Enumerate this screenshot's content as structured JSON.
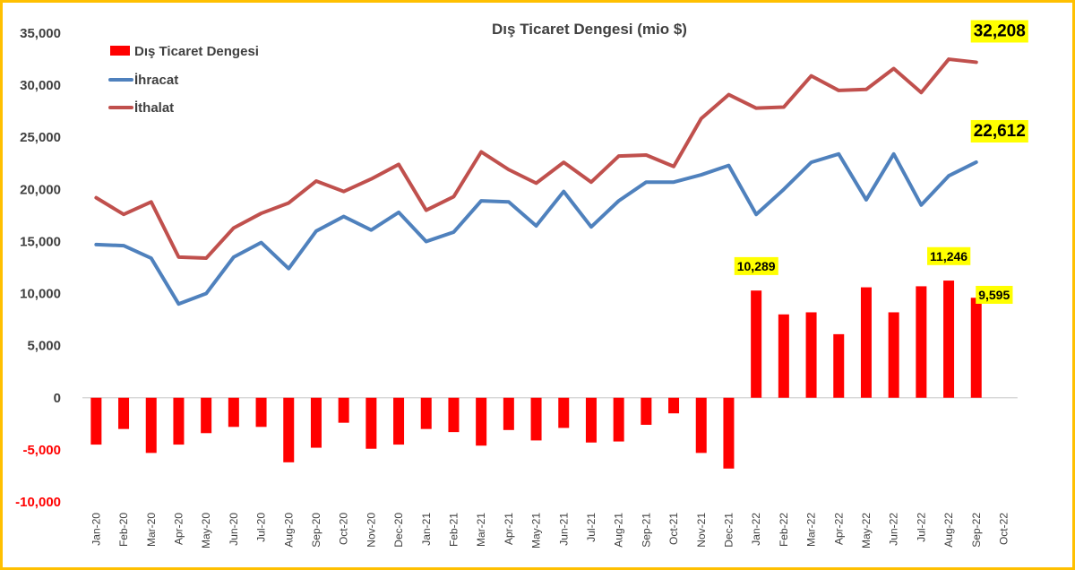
{
  "chart_data": {
    "type": "bar+line",
    "title": "Dış Ticaret Dengesi (mio $)",
    "categories": [
      "Jan-20",
      "Feb-20",
      "Mar-20",
      "Apr-20",
      "May-20",
      "Jun-20",
      "Jul-20",
      "Aug-20",
      "Sep-20",
      "Oct-20",
      "Nov-20",
      "Dec-20",
      "Jan-21",
      "Feb-21",
      "Mar-21",
      "Apr-21",
      "May-21",
      "Jun-21",
      "Jul-21",
      "Aug-21",
      "Sep-21",
      "Oct-21",
      "Nov-21",
      "Dec-21",
      "Jan-22",
      "Feb-22",
      "Mar-22",
      "Apr-22",
      "May-22",
      "Jun-22",
      "Jul-22",
      "Aug-22",
      "Sep-22",
      "Oct-22"
    ],
    "ylim": [
      -10000,
      35000
    ],
    "yticks": [
      -10000,
      -5000,
      0,
      5000,
      10000,
      15000,
      20000,
      25000,
      30000,
      35000
    ],
    "ytick_labels": [
      "-10,000",
      "-5,000",
      "0",
      "5,000",
      "10,000",
      "15,000",
      "20,000",
      "25,000",
      "30,000",
      "35,000"
    ],
    "grid": false,
    "legend_position": "top-left",
    "series": [
      {
        "name": "Dış Ticaret Dengesi",
        "type": "bar",
        "color": "#ff0000",
        "values": [
          -4500,
          -3000,
          -5300,
          -4500,
          -3400,
          -2800,
          -2800,
          -6200,
          -4800,
          -2400,
          -4900,
          -4500,
          -3000,
          -3300,
          -4600,
          -3100,
          -4100,
          -2900,
          -4300,
          -4200,
          -2600,
          -1500,
          -5300,
          -6800,
          10289,
          8000,
          8200,
          6100,
          10600,
          8200,
          10700,
          11246,
          9595,
          null
        ]
      },
      {
        "name": "İhracat",
        "type": "line",
        "color": "#4f81bd",
        "values": [
          14700,
          14600,
          13400,
          9000,
          10000,
          13500,
          14900,
          12400,
          16000,
          17400,
          16100,
          17800,
          15000,
          15900,
          18900,
          18800,
          16500,
          19800,
          16400,
          18900,
          20700,
          20700,
          21400,
          22300,
          17600,
          20000,
          22600,
          23400,
          19000,
          23400,
          18500,
          21300,
          22612,
          null
        ]
      },
      {
        "name": "İthalat",
        "type": "line",
        "color": "#c0504d",
        "values": [
          19200,
          17600,
          18800,
          13500,
          13400,
          16300,
          17700,
          18700,
          20800,
          19800,
          21000,
          22400,
          18000,
          19300,
          23600,
          21900,
          20600,
          22600,
          20700,
          23200,
          23300,
          22200,
          26800,
          29100,
          27800,
          27900,
          30900,
          29500,
          29600,
          31600,
          29300,
          32500,
          32208,
          null
        ]
      }
    ],
    "annotations": [
      {
        "text": "32,208",
        "series": "İthalat",
        "category": "Sep-22",
        "value": 32208,
        "highlight": "#ffff00"
      },
      {
        "text": "22,612",
        "series": "İhracat",
        "category": "Sep-22",
        "value": 22612,
        "highlight": "#ffff00"
      },
      {
        "text": "10,289",
        "series": "Dış Ticaret Dengesi",
        "category": "Jan-22",
        "value": 10289,
        "highlight": "#ffff00"
      },
      {
        "text": "11,246",
        "series": "Dış Ticaret Dengesi",
        "category": "Aug-22",
        "value": 11246,
        "highlight": "#ffff00"
      },
      {
        "text": "9,595",
        "series": "Dış Ticaret Dengesi",
        "category": "Sep-22",
        "value": 9595,
        "highlight": "#ffff00"
      }
    ],
    "colors": {
      "frame": "#ffc000",
      "highlight": "#ffff00"
    }
  }
}
